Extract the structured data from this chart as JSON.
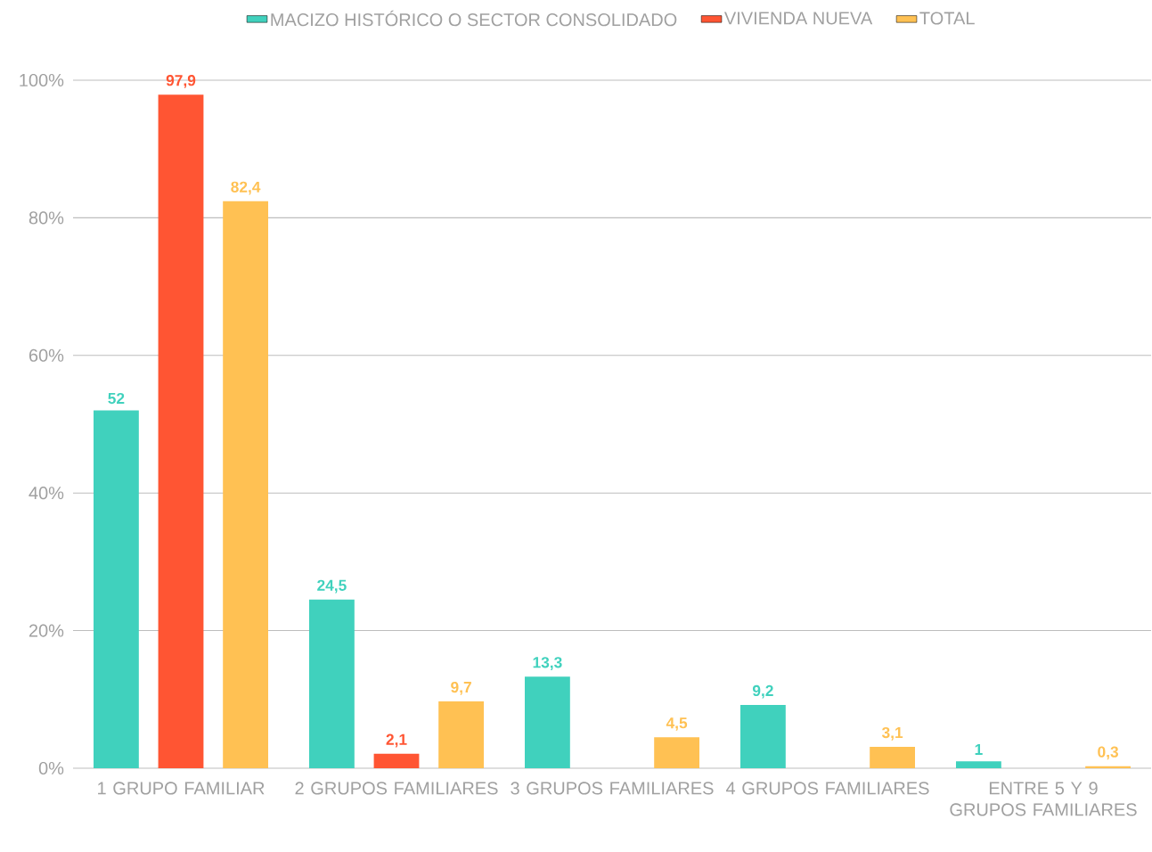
{
  "chart_data": {
    "type": "bar",
    "categories": [
      "1 GRUPO FAMILIAR",
      "2 GRUPOS FAMILIARES",
      "3 GRUPOS FAMILIARES",
      "4 GRUPOS FAMILIARES",
      "ENTRE 5 Y 9 GRUPOS FAMILIARES"
    ],
    "series": [
      {
        "name": "MACIZO HISTÓRICO O SECTOR CONSOLIDADO",
        "color": "#40d1bd",
        "values": [
          52,
          24.5,
          13.3,
          9.2,
          1
        ],
        "value_labels": [
          "52",
          "24,5",
          "13,3",
          "9,2",
          "1"
        ]
      },
      {
        "name": "VIVIENDA NUEVA",
        "color": "#ff5533",
        "values": [
          97.9,
          2.1,
          null,
          null,
          null
        ],
        "value_labels": [
          "97,9",
          "2,1",
          null,
          null,
          null
        ]
      },
      {
        "name": "TOTAL",
        "color": "#ffc153",
        "values": [
          82.4,
          9.7,
          4.5,
          3.1,
          0.3
        ],
        "value_labels": [
          "82,4",
          "9,7",
          "4,5",
          "3,1",
          "0,3"
        ]
      }
    ],
    "ylim": [
      0,
      100
    ],
    "yticks": [
      {
        "value": 0,
        "label": "0%"
      },
      {
        "value": 20,
        "label": "20%"
      },
      {
        "value": 40,
        "label": "40%"
      },
      {
        "value": 60,
        "label": "60%"
      },
      {
        "value": 80,
        "label": "80%"
      },
      {
        "value": 100,
        "label": "100%"
      }
    ],
    "grid": "y",
    "legend": "top"
  }
}
